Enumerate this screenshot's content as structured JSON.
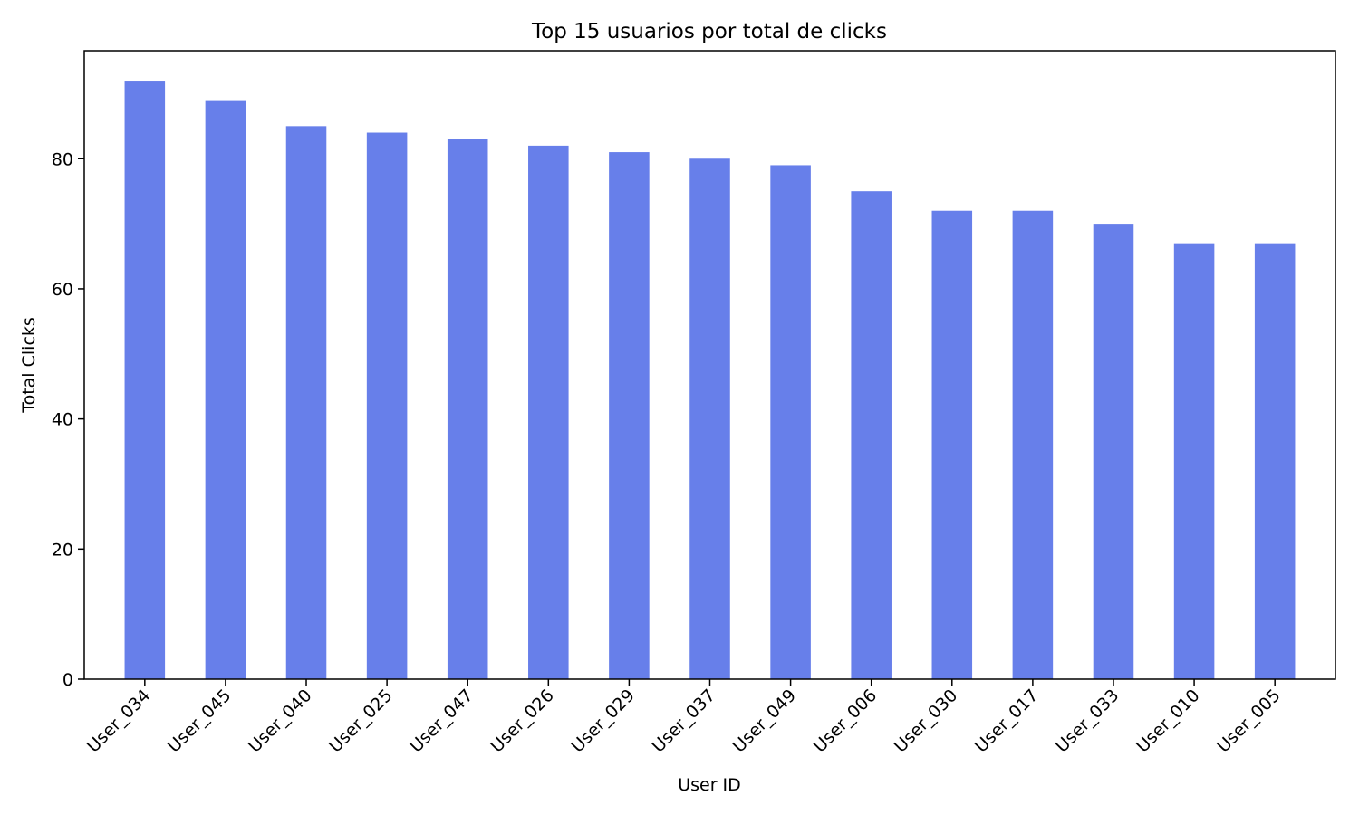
{
  "chart_data": {
    "type": "bar",
    "title": "Top 15 usuarios por total de clicks",
    "xlabel": "User ID",
    "ylabel": "Total Clicks",
    "categories": [
      "User_034",
      "User_045",
      "User_040",
      "User_025",
      "User_047",
      "User_026",
      "User_029",
      "User_037",
      "User_049",
      "User_006",
      "User_030",
      "User_017",
      "User_033",
      "User_010",
      "User_005"
    ],
    "values": [
      92,
      89,
      85,
      84,
      83,
      82,
      81,
      80,
      79,
      75,
      72,
      72,
      70,
      67,
      67
    ],
    "ylim": [
      0,
      96.6
    ],
    "yticks": [
      0,
      20,
      40,
      60,
      80
    ],
    "bar_color": "#677fea",
    "grid": false,
    "legend": "none"
  }
}
